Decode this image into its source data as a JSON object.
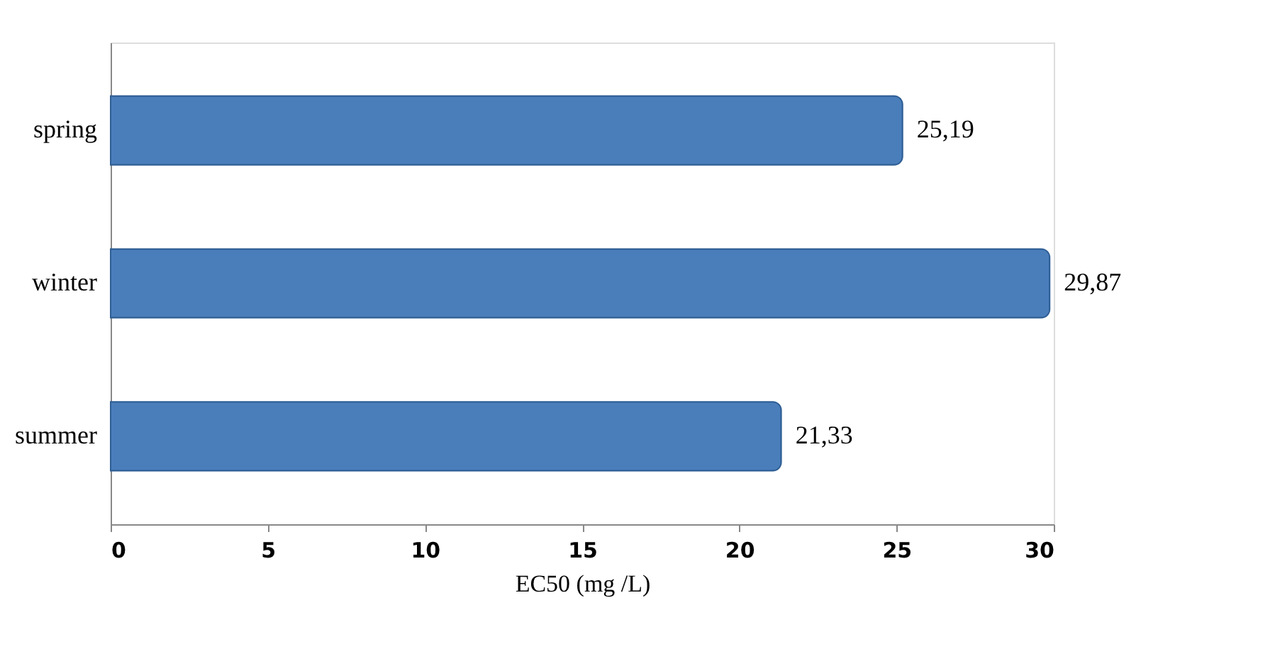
{
  "chart_data": {
    "type": "bar",
    "orientation": "horizontal",
    "categories": [
      "spring",
      "winter",
      "summer"
    ],
    "values": [
      25.19,
      29.87,
      21.33
    ],
    "color": "#4a7ebb",
    "value_labels": [
      "25,19",
      "29,87",
      "21,33"
    ],
    "xlim": [
      0,
      30
    ],
    "xticks": [
      0,
      5,
      10,
      15,
      20,
      25,
      30
    ],
    "xlabel": "EC50 (mg /L)",
    "grid": false
  }
}
